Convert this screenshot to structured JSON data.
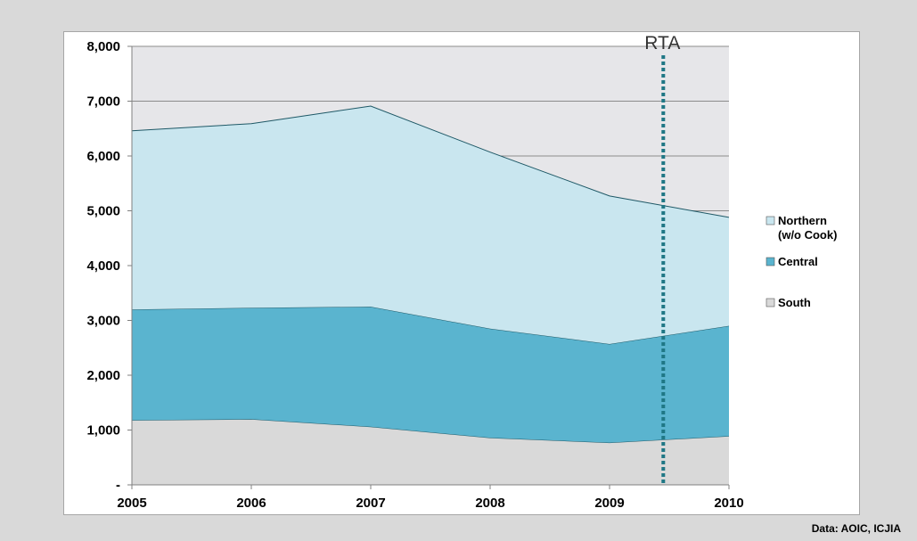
{
  "chart_data": {
    "type": "area",
    "stacked": true,
    "x": [
      "2005",
      "2006",
      "2007",
      "2008",
      "2009",
      "2010"
    ],
    "y_ticks": [
      "-",
      "1,000",
      "2,000",
      "3,000",
      "4,000",
      "5,000",
      "6,000",
      "7,000",
      "8,000"
    ],
    "ylim": [
      0,
      8000
    ],
    "grid": true,
    "legend_position": "right",
    "series": [
      {
        "name": "South",
        "values": [
          1180,
          1200,
          1060,
          860,
          770,
          890
        ],
        "color": "#d9d9d9"
      },
      {
        "name": "Central",
        "values": [
          2020,
          2030,
          2190,
          1990,
          1800,
          2010
        ],
        "color": "#5ab4cf"
      },
      {
        "name": "Northern (w/o Cook)",
        "values": [
          3260,
          3360,
          3660,
          3220,
          2700,
          1980
        ],
        "color": "#c9e6ef"
      }
    ],
    "legend": [
      {
        "lines": [
          "Northern",
          "(w/o Cook)"
        ],
        "color": "#c9e6ef"
      },
      {
        "lines": [
          "Central"
        ],
        "color": "#5ab4cf"
      },
      {
        "lines": [
          "South"
        ],
        "color": "#d9d9d9"
      }
    ],
    "marker": {
      "label": "RTA",
      "x": 2009.45,
      "color": "#1f7785"
    },
    "plot_background": "#e6e6e9",
    "source_note": "Data:  AOIC, ICJIA"
  }
}
